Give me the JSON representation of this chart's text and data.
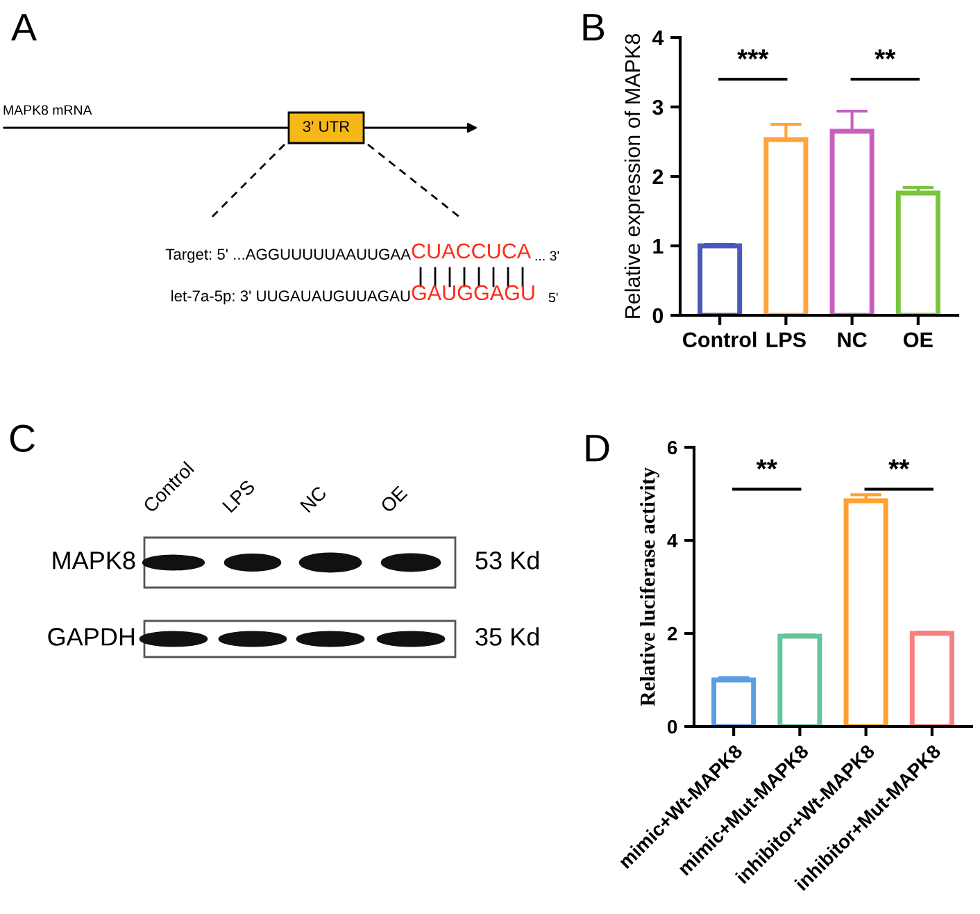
{
  "chart_data": [
    {
      "type": "other",
      "title": "A",
      "annotations": [
        "MAPK8 mRNA",
        "3' UTR",
        "Target: 5' ...AGGUUUUUAAUUGAA",
        "CUACCUCA",
        "... 3'",
        "let-7a-5p: 3' UUGAUAUGUUAGAU",
        "GAUGGAGU",
        "5'"
      ]
    },
    {
      "type": "bar",
      "title": "B",
      "ylabel": "Relative expression of MAPK8",
      "categories": [
        "Control",
        "LPS",
        "NC",
        "OE"
      ],
      "values": [
        1.0,
        2.53,
        2.65,
        1.76
      ],
      "colors": [
        "#4a58b8",
        "#ffa53c",
        "#c660be",
        "#7cc440"
      ],
      "errors": [
        [
          1.0,
          1.02
        ],
        [
          2.53,
          2.75
        ],
        [
          2.65,
          2.94
        ],
        [
          1.76,
          1.84
        ]
      ],
      "ylim": [
        0,
        4
      ],
      "yticks": [
        0,
        1,
        2,
        3,
        4
      ],
      "grid": false,
      "annotations": [
        "***",
        "**"
      ]
    },
    {
      "type": "other",
      "title": "C",
      "annotations": [
        "Control",
        "LPS",
        "NC",
        "OE",
        "MAPK8",
        "GAPDH",
        "53 Kd",
        "35 Kd"
      ]
    },
    {
      "type": "bar",
      "title": "D",
      "ylabel": "Relative luciferase activity",
      "categories": [
        "mimic+Wt-MAPK8",
        "mimic+Mut-MAPK8",
        "inhibitor+Wt-MAPK8",
        "inhibitor+Mut-MAPK8"
      ],
      "values": [
        1.0,
        1.94,
        4.85,
        2.0
      ],
      "colors": [
        "#5b9de0",
        "#66c49c",
        "#ffa030",
        "#f88080"
      ],
      "errors": [
        [
          1.0,
          1.05
        ],
        [
          1.94,
          1.97
        ],
        [
          4.85,
          4.98
        ],
        [
          2.0,
          2.03
        ]
      ],
      "ylim": [
        0,
        6
      ],
      "yticks": [
        0,
        2,
        4,
        6
      ],
      "grid": false,
      "annotations": [
        "**",
        "**"
      ]
    }
  ]
}
